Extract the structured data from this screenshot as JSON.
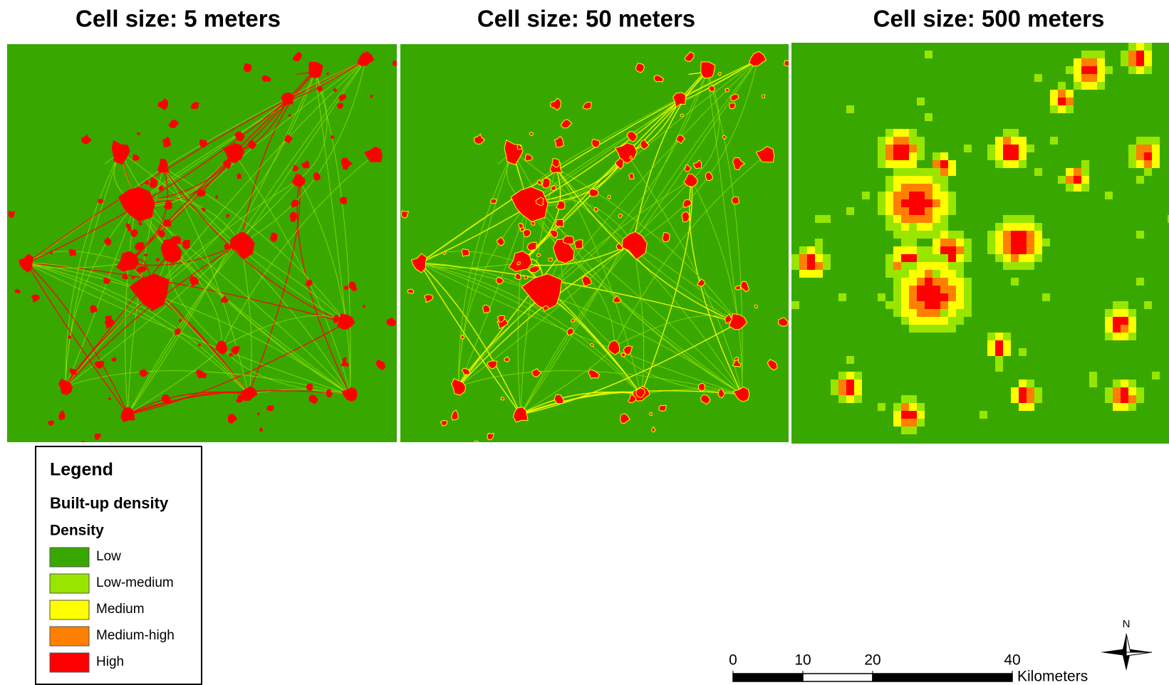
{
  "panels": [
    {
      "title": "Cell size: 5 meters"
    },
    {
      "title": "Cell size: 50 meters"
    },
    {
      "title": "Cell size: 500 meters"
    }
  ],
  "legend": {
    "title": "Legend",
    "subtitle": "Built-up density",
    "heading": "Density",
    "items": [
      {
        "label": "Low",
        "color": "#38a800"
      },
      {
        "label": "Low-medium",
        "color": "#98e600"
      },
      {
        "label": "Medium",
        "color": "#ffff00"
      },
      {
        "label": "Medium-high",
        "color": "#ff8000"
      },
      {
        "label": "High",
        "color": "#ff0000"
      }
    ]
  },
  "scale_bar": {
    "ticks": [
      0,
      10,
      20,
      40
    ],
    "unit": "Kilometers"
  },
  "north_label": "N"
}
